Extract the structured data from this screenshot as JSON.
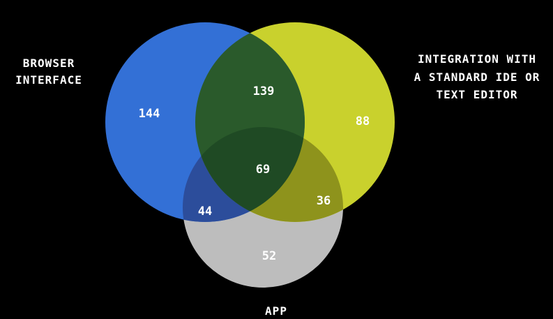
{
  "sets": [
    {
      "key": "browser",
      "lines": [
        "BROWSER",
        "INTERFACE"
      ],
      "color": "#3370d6"
    },
    {
      "key": "ide",
      "lines": [
        "INTEGRATION WITH",
        "A STANDARD IDE OR",
        "TEXT EDITOR"
      ],
      "color": "#c9d12d"
    },
    {
      "key": "app",
      "lines": [
        "APP"
      ],
      "color": "#bdbdbd"
    }
  ],
  "regions": {
    "browser_only": "144",
    "browser_ide": "139",
    "ide_only": "88",
    "all_three": "69",
    "browser_app": "44",
    "ide_app": "36",
    "app_only": "52"
  },
  "colors": {
    "background": "#000000",
    "browser_ide_overlap": "#2a5a2b",
    "center_overlap": "#1f4a24",
    "browser_app_overlap": "#2c4d9b",
    "ide_app_overlap": "#8e931c"
  }
}
